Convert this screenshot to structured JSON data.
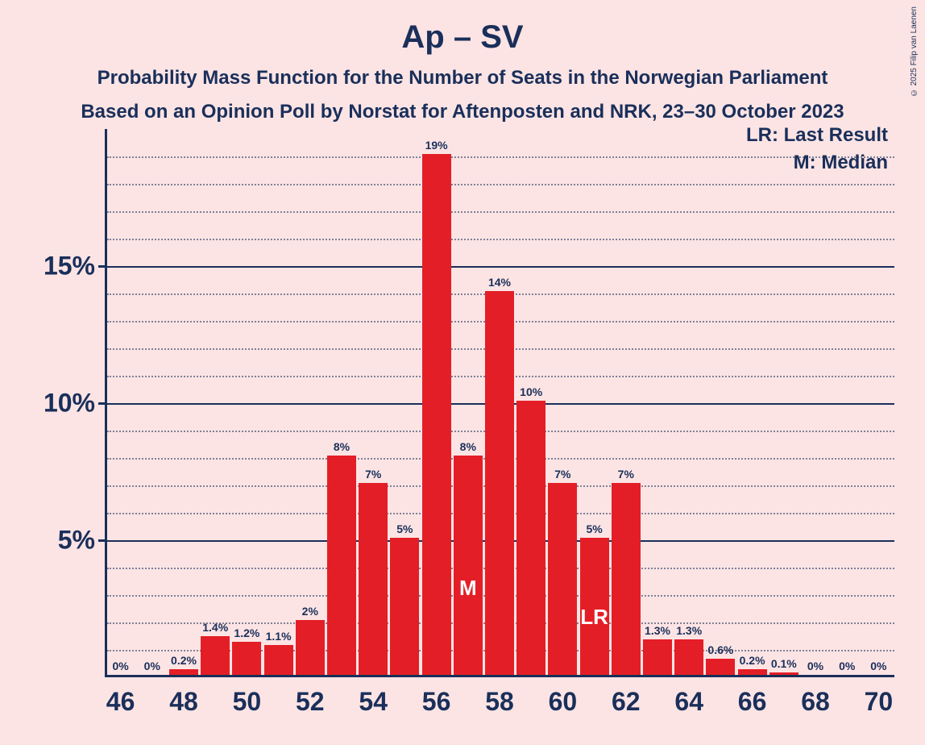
{
  "copyright": "© 2025 Filip van Laenen",
  "title": {
    "text": "Ap – SV",
    "fontsize": 40
  },
  "subtitle1": {
    "text": "Probability Mass Function for the Number of Seats in the Norwegian Parliament",
    "fontsize": 24
  },
  "subtitle2": {
    "text": "Based on an Opinion Poll by Norstat for Aftenposten and NRK, 23–30 October 2023",
    "fontsize": 24
  },
  "legend": {
    "lr": "LR: Last Result",
    "m": "M: Median"
  },
  "colors": {
    "background": "#fce4e4",
    "axis_text": "#1a2f5a",
    "grid": "#1a2f5a",
    "bar": "#e41e26",
    "bar_inner_text": "#ffffff"
  },
  "chart": {
    "type": "bar",
    "x_min": 45.5,
    "x_max": 70.5,
    "y_min": 0,
    "y_max": 20,
    "y_major_ticks": [
      5,
      10,
      15
    ],
    "y_minor_step": 1,
    "x_ticks": [
      46,
      48,
      50,
      52,
      54,
      56,
      58,
      60,
      62,
      64,
      66,
      68,
      70
    ],
    "tick_fontsize": 32,
    "bar_label_fontsize": 14,
    "bar_width": 0.92,
    "bars": [
      {
        "x": 46,
        "value": 0,
        "label": "0%"
      },
      {
        "x": 47,
        "value": 0,
        "label": "0%"
      },
      {
        "x": 48,
        "value": 0.2,
        "label": "0.2%"
      },
      {
        "x": 49,
        "value": 1.4,
        "label": "1.4%"
      },
      {
        "x": 50,
        "value": 1.2,
        "label": "1.2%"
      },
      {
        "x": 51,
        "value": 1.1,
        "label": "1.1%"
      },
      {
        "x": 52,
        "value": 2,
        "label": "2%"
      },
      {
        "x": 53,
        "value": 8,
        "label": "8%"
      },
      {
        "x": 54,
        "value": 7,
        "label": "7%"
      },
      {
        "x": 55,
        "value": 5,
        "label": "5%"
      },
      {
        "x": 56,
        "value": 19,
        "label": "19%"
      },
      {
        "x": 57,
        "value": 8,
        "label": "8%",
        "inner": "M"
      },
      {
        "x": 58,
        "value": 14,
        "label": "14%"
      },
      {
        "x": 59,
        "value": 10,
        "label": "10%"
      },
      {
        "x": 60,
        "value": 7,
        "label": "7%"
      },
      {
        "x": 61,
        "value": 5,
        "label": "5%",
        "inner": "LR"
      },
      {
        "x": 62,
        "value": 7,
        "label": "7%"
      },
      {
        "x": 63,
        "value": 1.3,
        "label": "1.3%"
      },
      {
        "x": 64,
        "value": 1.3,
        "label": "1.3%"
      },
      {
        "x": 65,
        "value": 0.6,
        "label": "0.6%"
      },
      {
        "x": 66,
        "value": 0.2,
        "label": "0.2%"
      },
      {
        "x": 67,
        "value": 0.1,
        "label": "0.1%"
      },
      {
        "x": 68,
        "value": 0,
        "label": "0%"
      },
      {
        "x": 69,
        "value": 0,
        "label": "0%"
      },
      {
        "x": 70,
        "value": 0,
        "label": "0%"
      }
    ]
  }
}
